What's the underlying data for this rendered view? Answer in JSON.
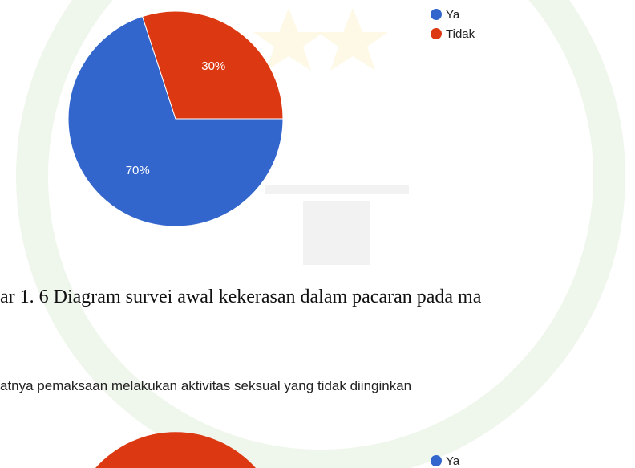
{
  "charts": [
    {
      "chart_data": {
        "type": "pie",
        "categories": [
          "Ya",
          "Tidak"
        ],
        "values": [
          70,
          30
        ],
        "value_labels": [
          "70%",
          "30%"
        ],
        "colors": [
          "#3366cc",
          "#dc3912"
        ]
      }
    },
    {
      "chart_data": {
        "type": "pie",
        "categories": [
          "Ya"
        ],
        "colors": [
          "#3366cc"
        ]
      }
    }
  ],
  "caption": "ar 1. 6 Diagram survei awal kekerasan dalam pacaran pada ma",
  "question": "atnya pemaksaan melakukan aktivitas seksual yang tidak diinginkan"
}
